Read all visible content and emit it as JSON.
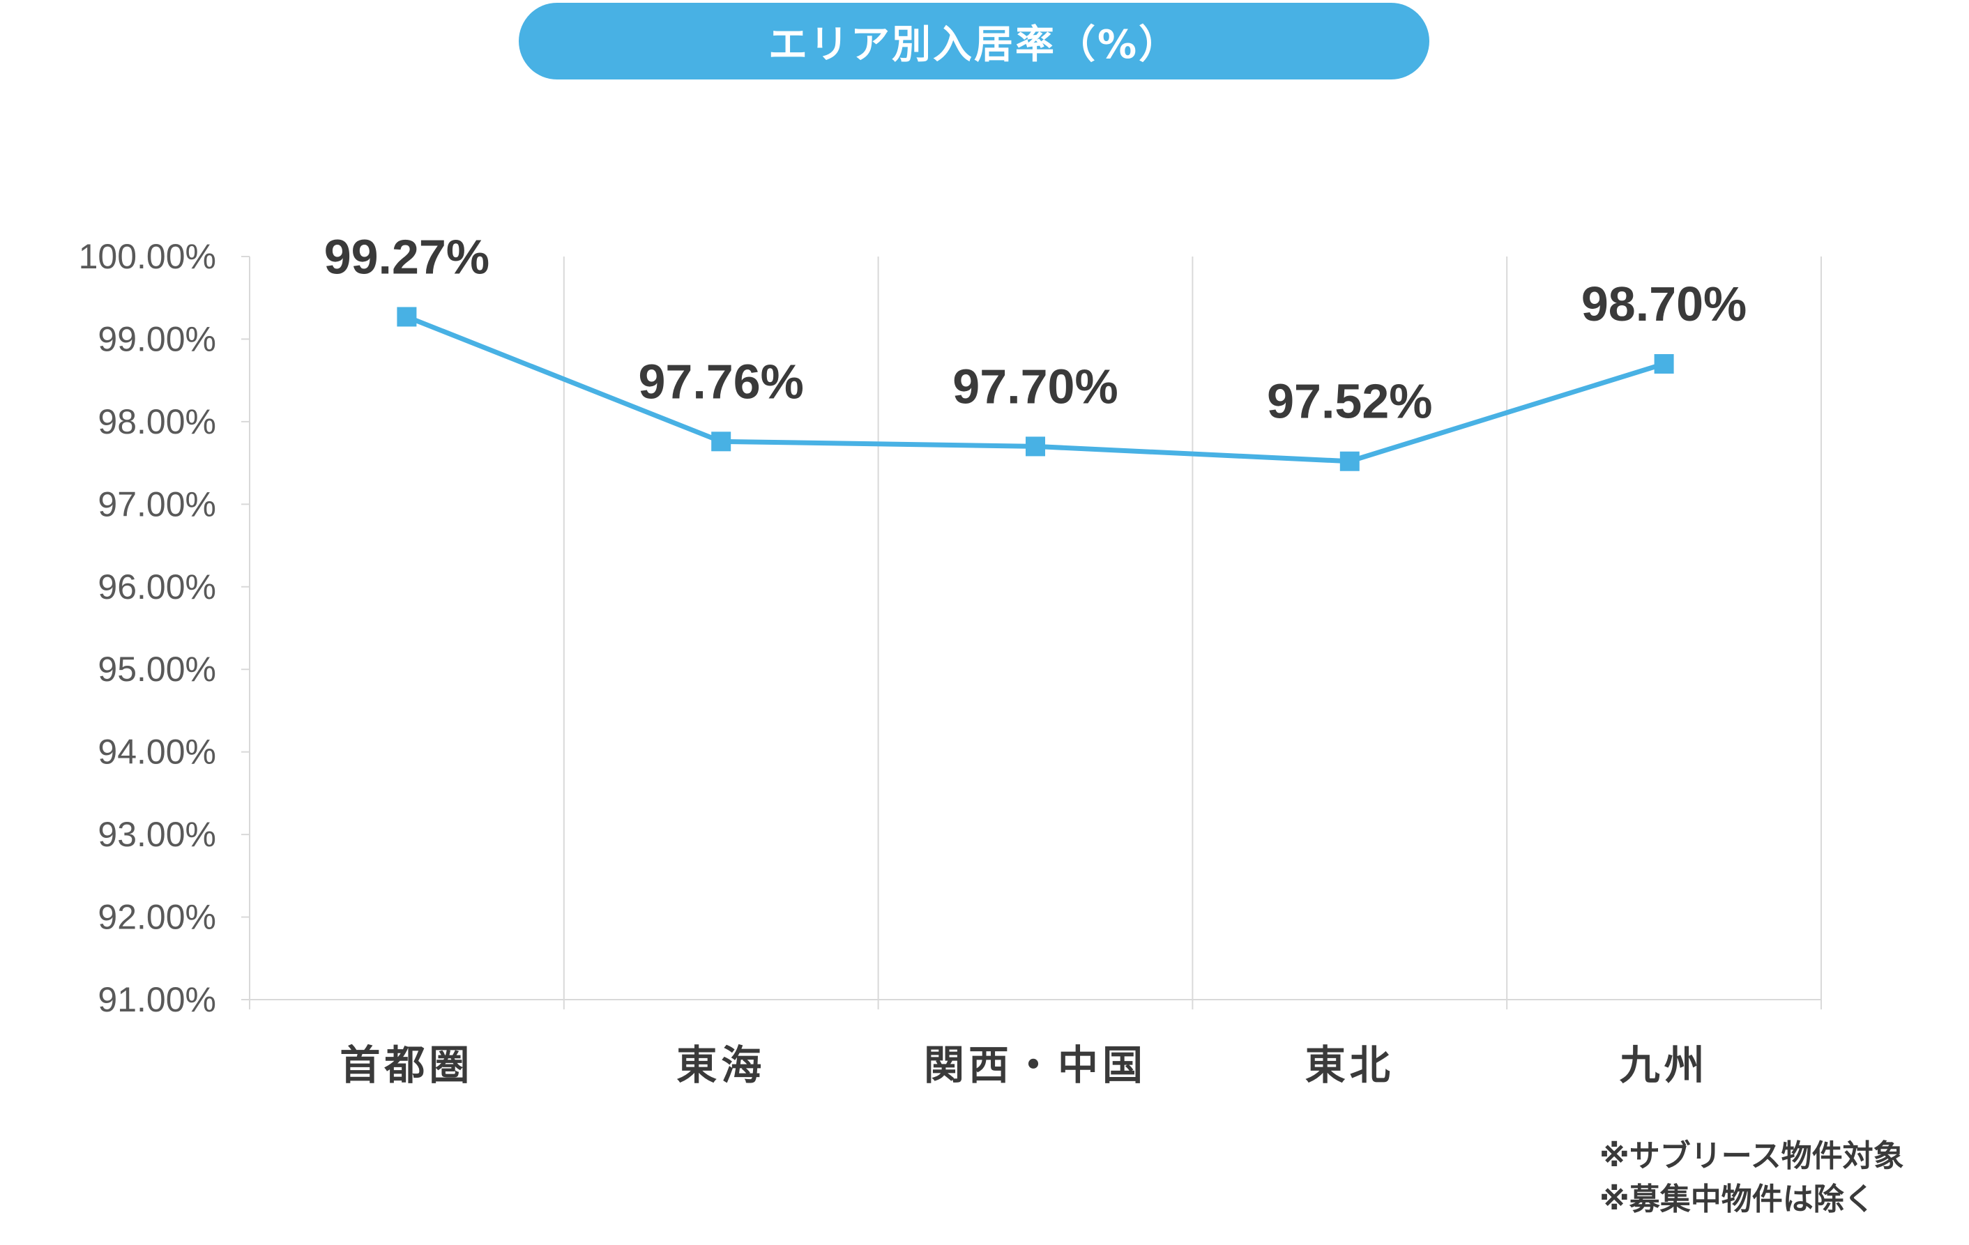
{
  "colors": {
    "accent": "#48b1e4",
    "text": "#3a3a3a",
    "axis_text": "#595959",
    "grid": "#d9d9d9"
  },
  "chart_data": {
    "type": "line",
    "title": "エリア別入居率（%）",
    "categories": [
      "首都圏",
      "東海",
      "関西・中国",
      "東北",
      "九州"
    ],
    "series": [
      {
        "values": [
          99.27,
          97.76,
          97.7,
          97.52,
          98.7
        ],
        "data_labels": [
          "99.27%",
          "97.76%",
          "97.70%",
          "97.52%",
          "98.70%"
        ],
        "marker": "square"
      }
    ],
    "ylim": [
      91,
      100
    ],
    "y_ticks": [
      100,
      99,
      98,
      97,
      96,
      95,
      94,
      93,
      92,
      91
    ],
    "y_tick_labels": [
      "100.00%",
      "99.00%",
      "98.00%",
      "97.00%",
      "96.00%",
      "95.00%",
      "94.00%",
      "93.00%",
      "92.00%",
      "91.00%"
    ],
    "grid": "vertical-category-separators",
    "legend": "none"
  },
  "notes": [
    "※サブリース物件対象",
    "※募集中物件は除く"
  ]
}
